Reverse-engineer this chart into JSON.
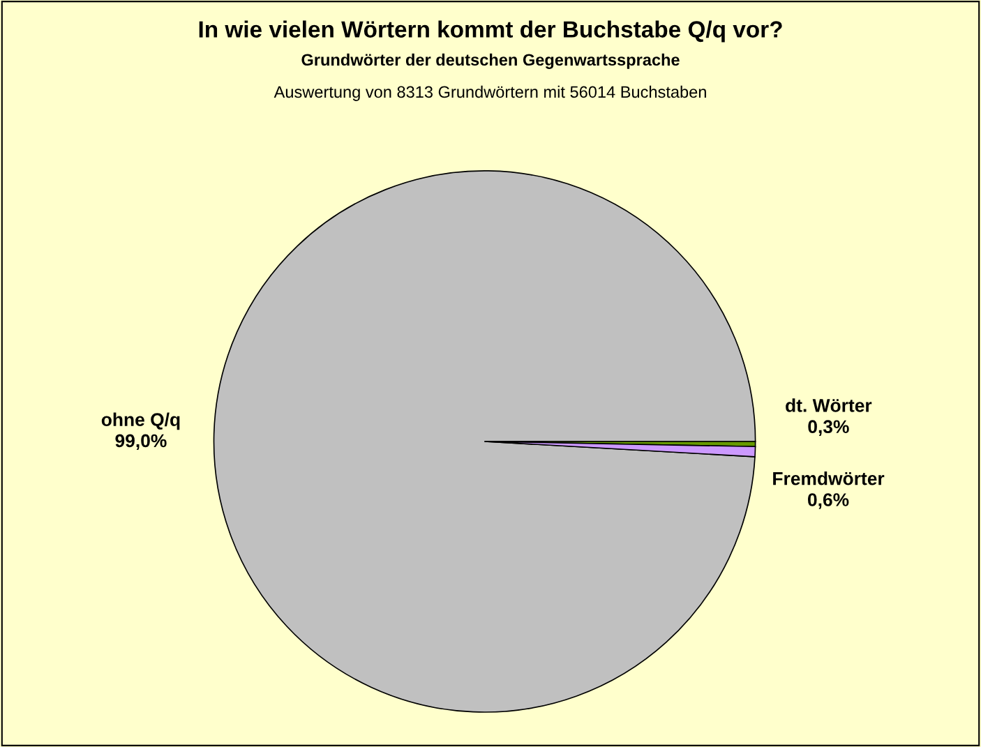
{
  "chart_data": {
    "type": "pie",
    "title": "In wie vielen Wörtern kommt der Buchstabe Q/q vor?",
    "subtitle": "Grundwörter der deutschen Gegenwartssprache",
    "annotations": [
      "Auswertung von 8313 Grundwörtern mit 56014 Buchstaben"
    ],
    "categories": [
      "ohne Q/q",
      "dt. Wörter",
      "Fremdwörter"
    ],
    "values": [
      99.0,
      0.3,
      0.6
    ],
    "value_labels": [
      "99,0%",
      "0,3%",
      "0,6%"
    ],
    "colors": [
      "#c0c0c0",
      "#669900",
      "#cc99ff"
    ]
  }
}
